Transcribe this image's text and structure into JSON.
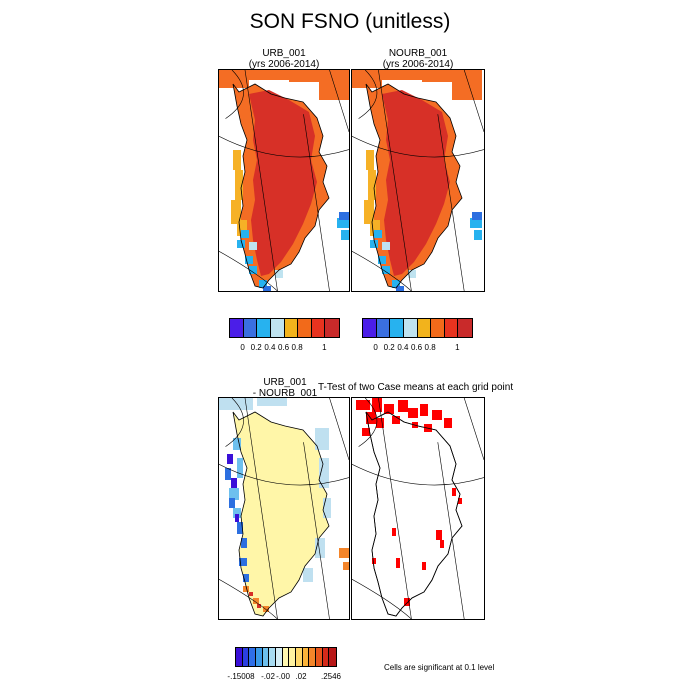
{
  "title": "SON FSNO (unitless)",
  "panels": {
    "urb": {
      "line1": "URB_001",
      "line2": "(yrs 2006-2014)"
    },
    "nourb": {
      "line1": "NOURB_001",
      "line2": "(yrs 2006-2014)"
    },
    "diff": {
      "line1": "URB_001",
      "line2": "- NOURB_001"
    },
    "ttest": {
      "title": "T-Test of two Case means at each grid point"
    }
  },
  "colorbar_top": {
    "colors": [
      "#4b1ee8",
      "#3a6fe0",
      "#27b2ef",
      "#bfe3f0",
      "#f2b31c",
      "#f26a1a",
      "#e8331f",
      "#c92a2a"
    ],
    "labels": [
      "0",
      "0.2",
      "0.4",
      "0.6",
      "0.8",
      "1"
    ]
  },
  "colorbar_diff": {
    "colors": [
      "#3a10d8",
      "#2b3fe0",
      "#2f6fe8",
      "#3a9ae8",
      "#6dc0ee",
      "#a8dcf2",
      "#d6eef6",
      "#fff8b0",
      "#fff2a0",
      "#ffd86a",
      "#fbb43a",
      "#f4852a",
      "#e8561c",
      "#d42a1a",
      "#b81818"
    ],
    "labels": [
      "-.15008",
      "-.02",
      "-.00",
      ".02",
      ".2546"
    ]
  },
  "note": "Cells are significant at 0.1 level",
  "colors": {
    "high": "#d73027",
    "mid": "#f46d24",
    "yellow": "#ffe08a",
    "pale_yellow": "#fff6a8",
    "blue": "#2c6fe0",
    "significant": "#ff0000"
  }
}
